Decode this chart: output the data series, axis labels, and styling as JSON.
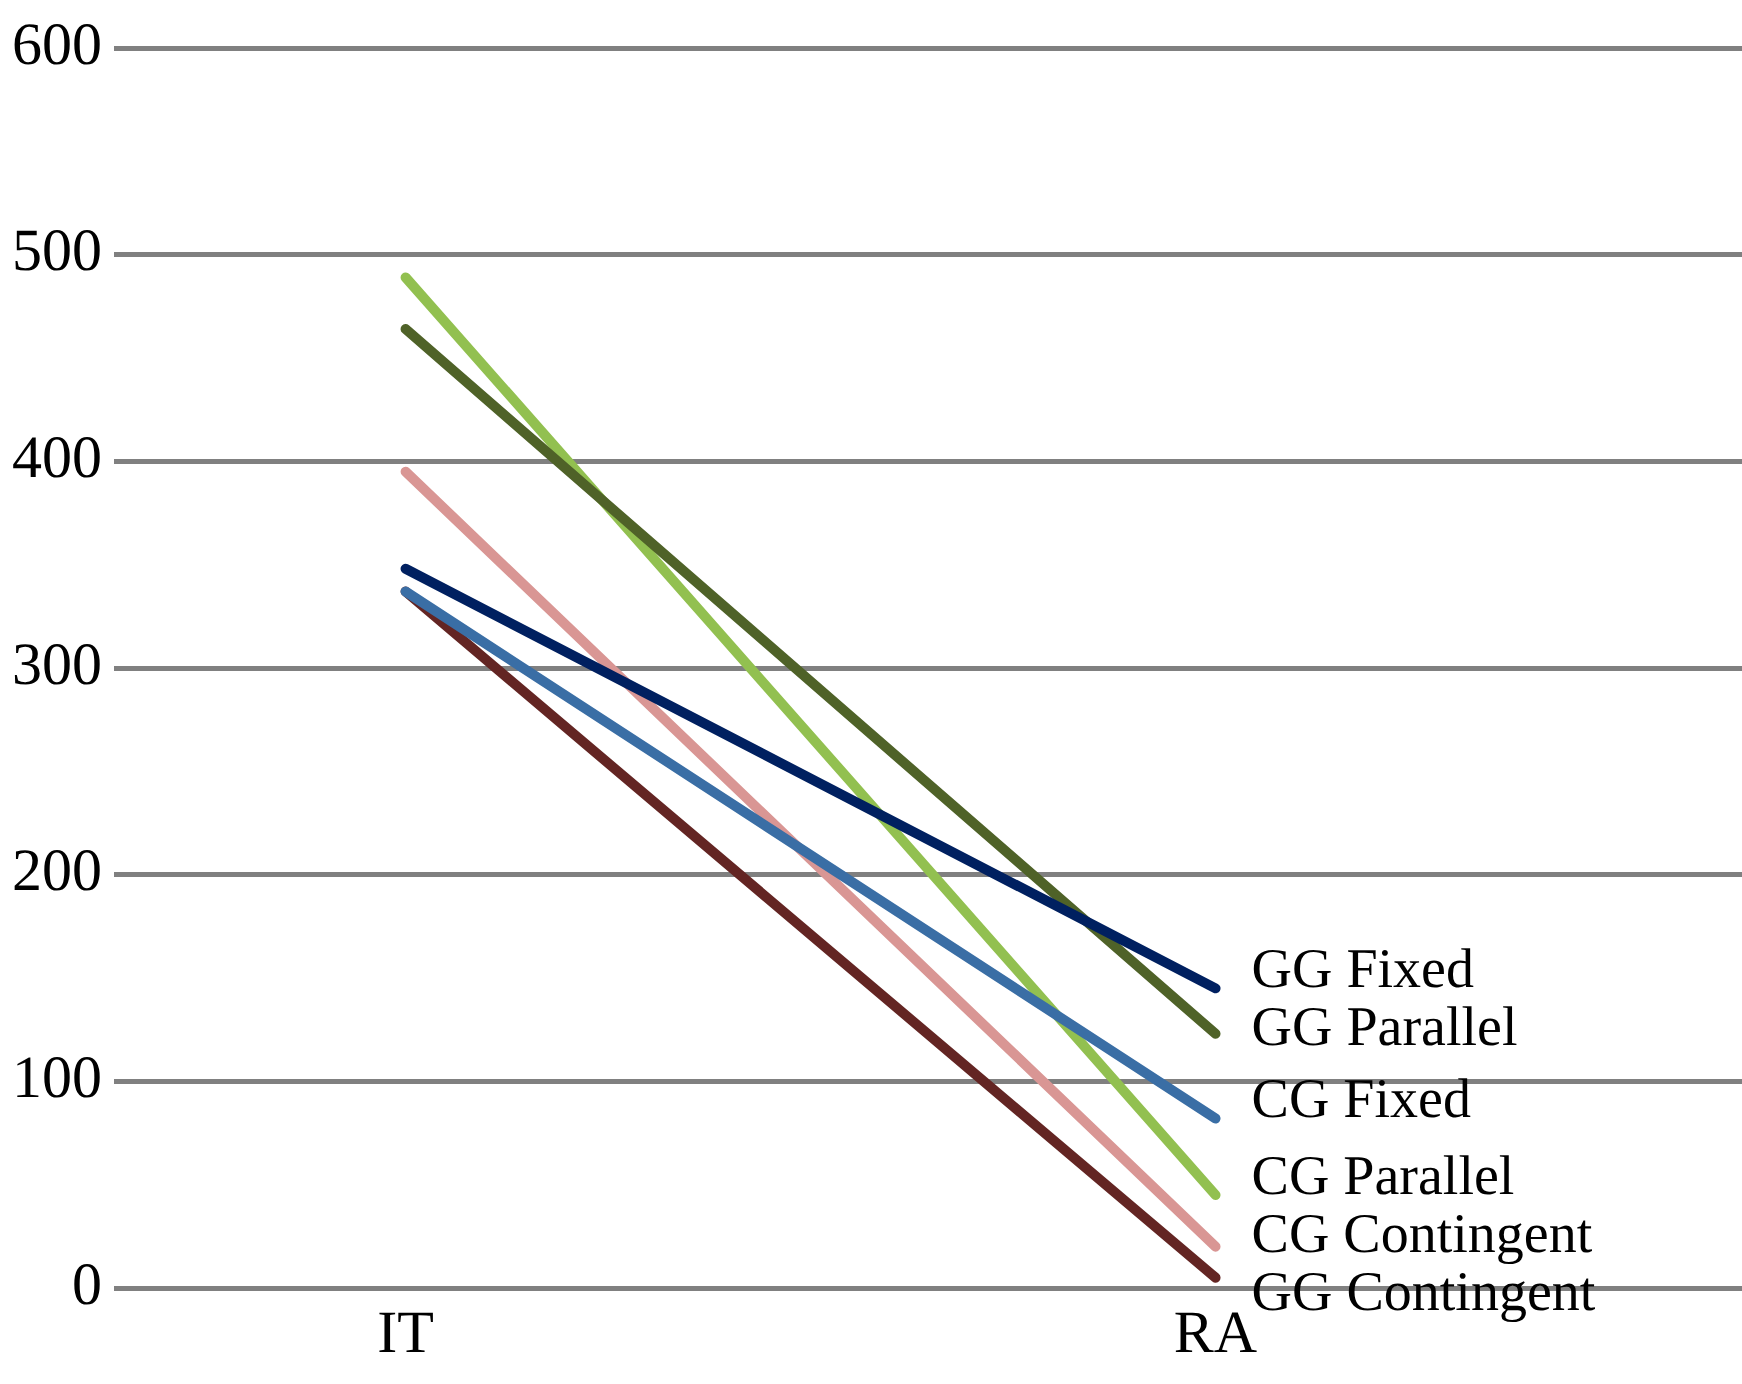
{
  "chart_data": {
    "type": "line",
    "categories": [
      "IT",
      "RA"
    ],
    "ylim": [
      0,
      600
    ],
    "yticks": [
      0,
      100,
      200,
      300,
      400,
      500,
      600
    ],
    "grid": "y",
    "legend": false,
    "marker": "none",
    "line_style": "solid",
    "series": [
      {
        "name": "GG Fixed",
        "color": "#002060",
        "values": [
          348,
          145
        ]
      },
      {
        "name": "GG Parallel",
        "color": "#4f6228",
        "values": [
          464,
          123
        ]
      },
      {
        "name": "CG Fixed",
        "color": "#3a6ea5",
        "values": [
          337,
          82
        ]
      },
      {
        "name": "CG Parallel",
        "color": "#92c050",
        "values": [
          489,
          45
        ]
      },
      {
        "name": "CG Contingent",
        "color": "#d99694",
        "values": [
          395,
          20
        ]
      },
      {
        "name": "GG Contingent",
        "color": "#632523",
        "values": [
          337,
          5
        ]
      }
    ]
  }
}
